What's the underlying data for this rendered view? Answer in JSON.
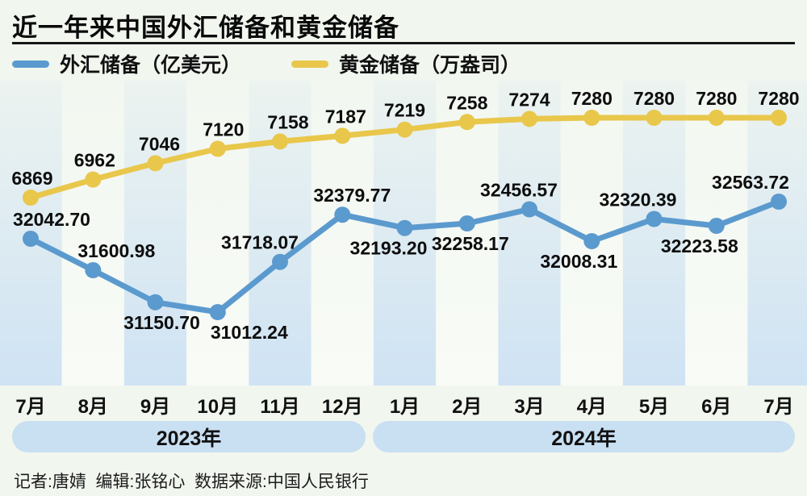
{
  "page": {
    "background": "#f1f6ef"
  },
  "header": {
    "title": "近一年来中国外汇储备和黄金储备"
  },
  "legend": [
    {
      "label": "外汇储备（亿美元）",
      "color": "#5b9ace"
    },
    {
      "label": "黄金储备（万盎司）",
      "color": "#e8c74b"
    }
  ],
  "chart_data": {
    "type": "line",
    "title": "近一年来中国外汇储备和黄金储备",
    "categories": [
      "7月",
      "8月",
      "9月",
      "10月",
      "11月",
      "12月",
      "1月",
      "2月",
      "3月",
      "4月",
      "5月",
      "6月",
      "7月"
    ],
    "year_groups": [
      {
        "label": "2023年",
        "months": 6
      },
      {
        "label": "2024年",
        "months": 7
      }
    ],
    "grid": false,
    "legend_position": "top",
    "background_stripes": {
      "blue": "#cfe3f4",
      "light": "#f8fbf6"
    },
    "series": [
      {
        "name": "外汇储备（亿美元）",
        "unit": "亿美元",
        "color": "#5b9ace",
        "values": [
          32042.7,
          31600.98,
          31150.7,
          31012.24,
          31718.07,
          32379.77,
          32193.2,
          32258.17,
          32456.57,
          32008.31,
          32320.39,
          32223.58,
          32563.72
        ],
        "labels": [
          "32042.70",
          "31600.98",
          "31150.70",
          "31012.24",
          "31718.07",
          "32379.77",
          "32193.20",
          "32258.17",
          "32456.57",
          "32008.31",
          "32320.39",
          "32223.58",
          "32563.72"
        ],
        "label_side": [
          "above",
          "above",
          "below",
          "below",
          "above",
          "above",
          "below",
          "below",
          "above",
          "below",
          "above",
          "below",
          "above"
        ],
        "label_dx": [
          26,
          29,
          8,
          39,
          -25,
          12,
          -20,
          4,
          -13,
          -16,
          -20,
          -21,
          -35
        ]
      },
      {
        "name": "黄金储备（万盎司）",
        "unit": "万盎司",
        "color": "#e8c74b",
        "values": [
          6869,
          6962,
          7046,
          7120,
          7158,
          7187,
          7219,
          7258,
          7274,
          7280,
          7280,
          7280,
          7280
        ],
        "labels": [
          "6869",
          "6962",
          "7046",
          "7120",
          "7158",
          "7187",
          "7219",
          "7258",
          "7274",
          "7280",
          "7280",
          "7280",
          "7280"
        ],
        "label_side": [
          "above",
          "above",
          "above",
          "above",
          "above",
          "above",
          "above",
          "above",
          "above",
          "above",
          "above",
          "above",
          "above"
        ],
        "label_dx": [
          2,
          2,
          5,
          7,
          10,
          4,
          0,
          0,
          0,
          0,
          0,
          0,
          0
        ]
      }
    ]
  },
  "footer": {
    "credits": "记者:唐婧  编辑:张铭心  数据来源:中国人民银行"
  }
}
